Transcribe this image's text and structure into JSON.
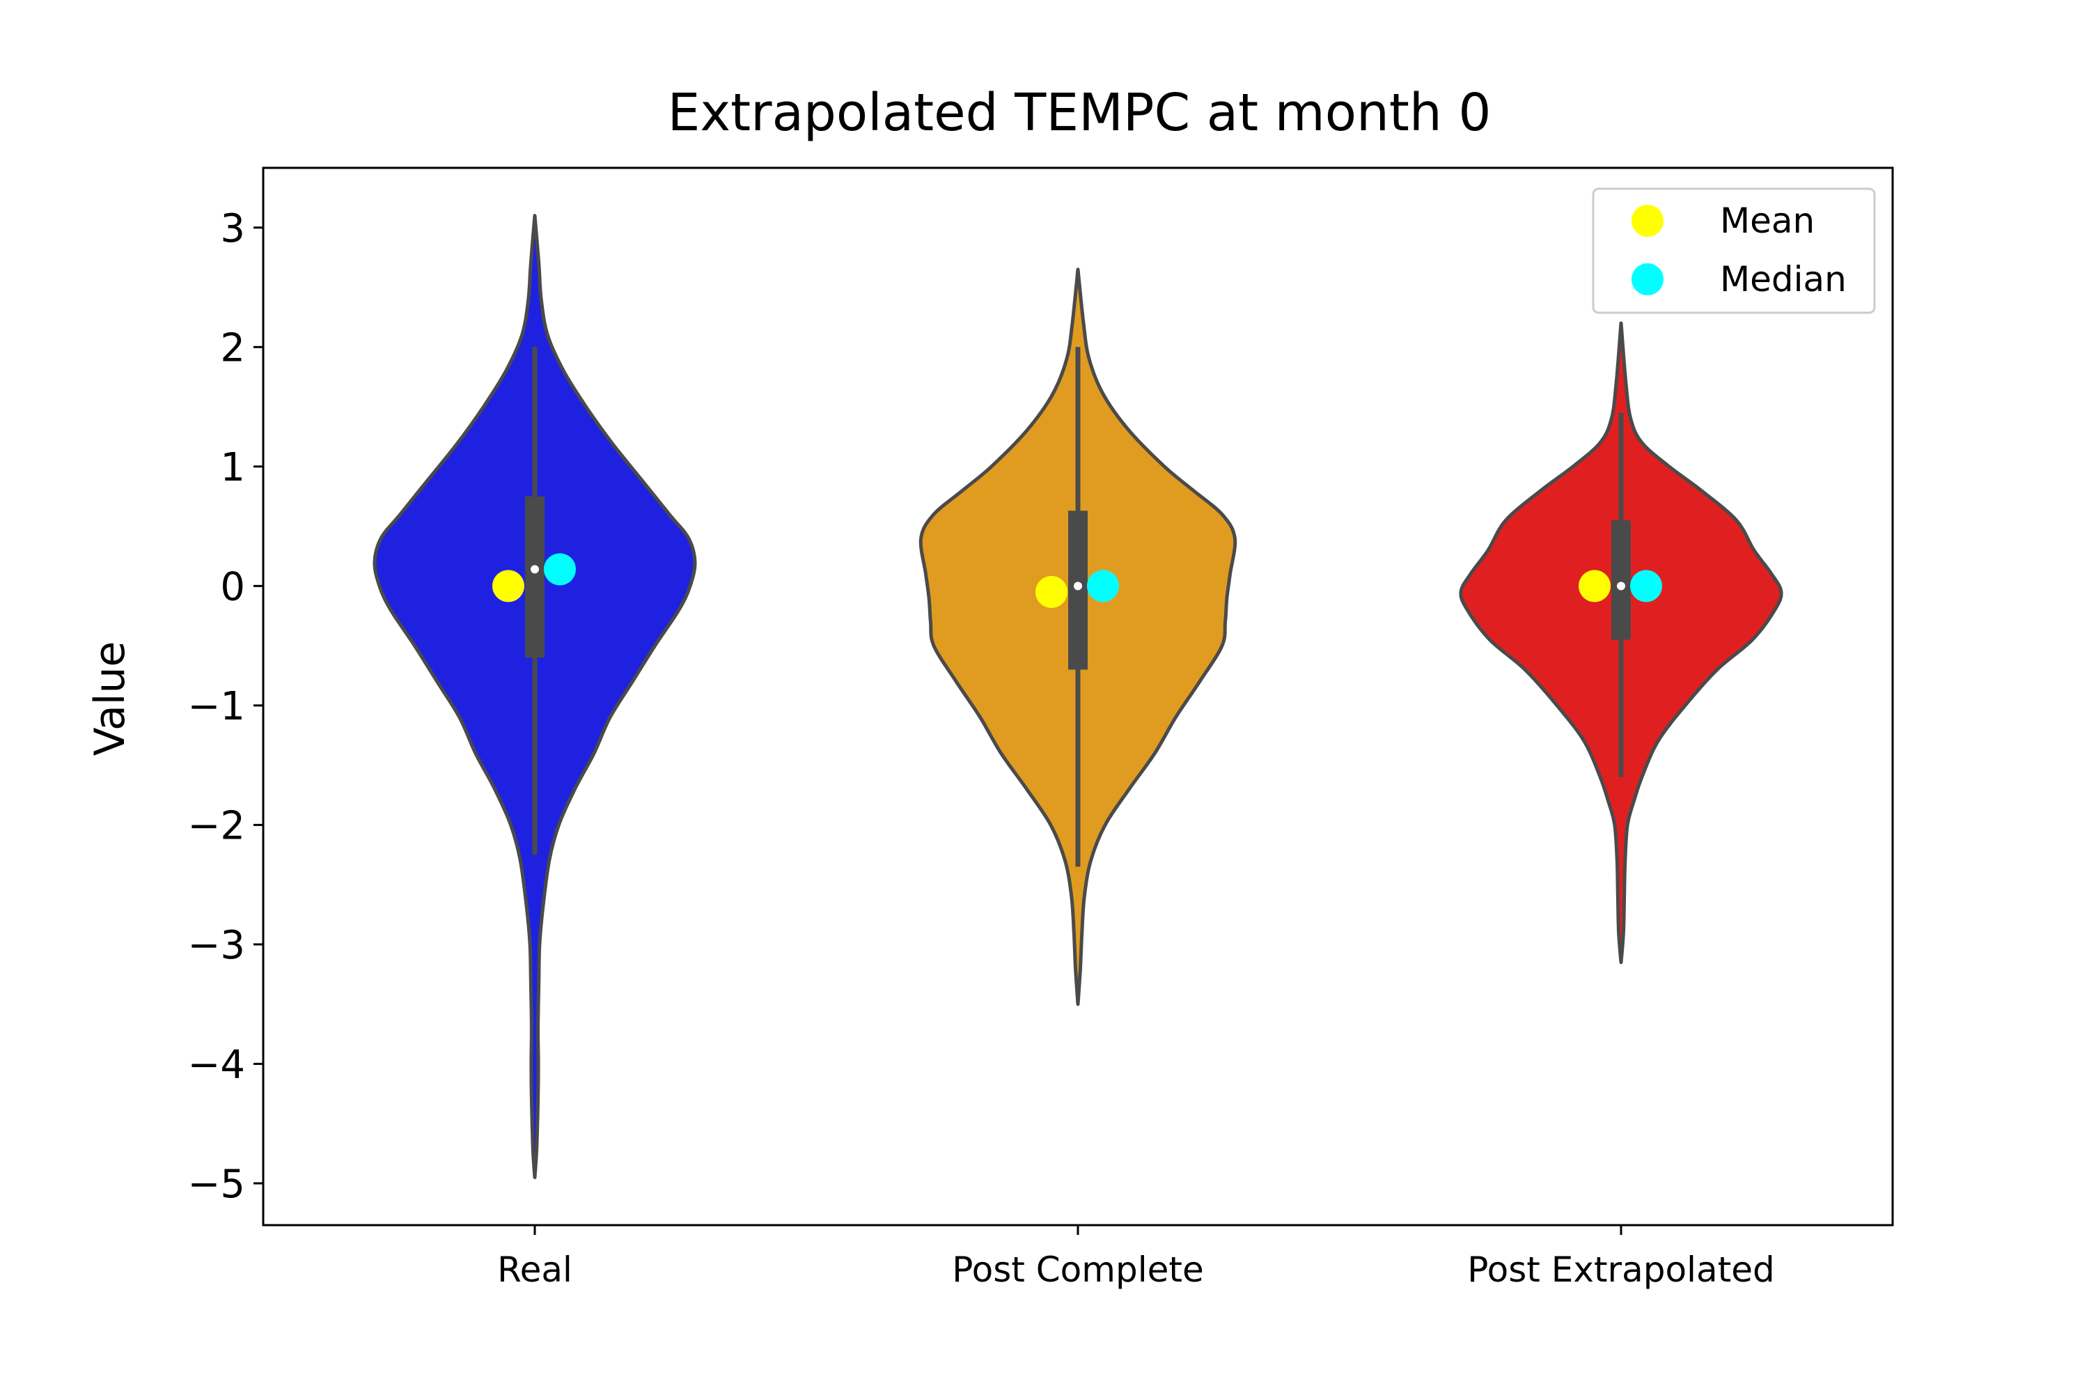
{
  "chart_data": {
    "type": "violin",
    "title": "Extrapolated TEMPC at month 0",
    "xlabel": "",
    "ylabel": "Value",
    "ylim": [
      -5.35,
      3.5
    ],
    "yticks": [
      3,
      2,
      1,
      0,
      -1,
      -2,
      -3,
      -4,
      -5
    ],
    "ytick_labels": [
      "3",
      "2",
      "1",
      "0",
      "−1",
      "−2",
      "−3",
      "−4",
      "−5"
    ],
    "categories": [
      "Real",
      "Post Complete",
      "Post Extrapolated"
    ],
    "grid": false,
    "legend": {
      "placement": "top-right",
      "entries": [
        {
          "label": "Mean",
          "color": "#ffff00"
        },
        {
          "label": "Median",
          "color": "#00ffff"
        }
      ]
    },
    "outline_color": "#4a4a4a",
    "series": [
      {
        "category": "Real",
        "color": "#1e22e0",
        "mean": 0.0,
        "median": 0.14,
        "q1": -0.6,
        "q3": 0.75,
        "whisker_low": -2.25,
        "whisker_high": 2.0,
        "min": -4.95,
        "max": 3.1,
        "density": [
          {
            "y": -4.95,
            "w": 0.0
          },
          {
            "y": -4.7,
            "w": 0.012
          },
          {
            "y": -4.3,
            "w": 0.02
          },
          {
            "y": -4.0,
            "w": 0.022
          },
          {
            "y": -3.7,
            "w": 0.02
          },
          {
            "y": -3.3,
            "w": 0.025
          },
          {
            "y": -3.0,
            "w": 0.03
          },
          {
            "y": -2.7,
            "w": 0.05
          },
          {
            "y": -2.3,
            "w": 0.09
          },
          {
            "y": -2.0,
            "w": 0.15
          },
          {
            "y": -1.7,
            "w": 0.25
          },
          {
            "y": -1.4,
            "w": 0.37
          },
          {
            "y": -1.1,
            "w": 0.47
          },
          {
            "y": -0.8,
            "w": 0.61
          },
          {
            "y": -0.5,
            "w": 0.75
          },
          {
            "y": -0.2,
            "w": 0.9
          },
          {
            "y": 0.0,
            "w": 0.97
          },
          {
            "y": 0.2,
            "w": 1.0
          },
          {
            "y": 0.4,
            "w": 0.96
          },
          {
            "y": 0.6,
            "w": 0.84
          },
          {
            "y": 0.9,
            "w": 0.66
          },
          {
            "y": 1.2,
            "w": 0.48
          },
          {
            "y": 1.5,
            "w": 0.32
          },
          {
            "y": 1.8,
            "w": 0.18
          },
          {
            "y": 2.1,
            "w": 0.08
          },
          {
            "y": 2.4,
            "w": 0.04
          },
          {
            "y": 2.7,
            "w": 0.025
          },
          {
            "y": 3.1,
            "w": 0.0
          }
        ]
      },
      {
        "category": "Post Complete",
        "color": "#e09c20",
        "mean": -0.05,
        "median": 0.0,
        "q1": -0.7,
        "q3": 0.63,
        "whisker_low": -2.35,
        "whisker_high": 2.0,
        "min": -3.5,
        "max": 2.65,
        "density": [
          {
            "y": -3.5,
            "w": 0.0
          },
          {
            "y": -3.2,
            "w": 0.015
          },
          {
            "y": -2.9,
            "w": 0.025
          },
          {
            "y": -2.6,
            "w": 0.04
          },
          {
            "y": -2.3,
            "w": 0.08
          },
          {
            "y": -2.0,
            "w": 0.17
          },
          {
            "y": -1.7,
            "w": 0.32
          },
          {
            "y": -1.4,
            "w": 0.48
          },
          {
            "y": -1.1,
            "w": 0.61
          },
          {
            "y": -0.8,
            "w": 0.76
          },
          {
            "y": -0.5,
            "w": 0.9
          },
          {
            "y": -0.3,
            "w": 0.92
          },
          {
            "y": -0.1,
            "w": 0.93
          },
          {
            "y": 0.1,
            "w": 0.95
          },
          {
            "y": 0.4,
            "w": 0.98
          },
          {
            "y": 0.6,
            "w": 0.9
          },
          {
            "y": 0.8,
            "w": 0.72
          },
          {
            "y": 1.0,
            "w": 0.54
          },
          {
            "y": 1.3,
            "w": 0.32
          },
          {
            "y": 1.6,
            "w": 0.16
          },
          {
            "y": 1.9,
            "w": 0.07
          },
          {
            "y": 2.2,
            "w": 0.035
          },
          {
            "y": 2.65,
            "w": 0.0
          }
        ]
      },
      {
        "category": "Post Extrapolated",
        "color": "#e02020",
        "mean": 0.0,
        "median": 0.0,
        "q1": -0.45,
        "q3": 0.55,
        "whisker_low": -1.6,
        "whisker_high": 1.45,
        "min": -3.15,
        "max": 2.2,
        "density": [
          {
            "y": -3.15,
            "w": 0.0
          },
          {
            "y": -2.9,
            "w": 0.015
          },
          {
            "y": -2.6,
            "w": 0.02
          },
          {
            "y": -2.3,
            "w": 0.025
          },
          {
            "y": -2.0,
            "w": 0.04
          },
          {
            "y": -1.8,
            "w": 0.08
          },
          {
            "y": -1.6,
            "w": 0.13
          },
          {
            "y": -1.3,
            "w": 0.23
          },
          {
            "y": -1.0,
            "w": 0.4
          },
          {
            "y": -0.7,
            "w": 0.6
          },
          {
            "y": -0.45,
            "w": 0.82
          },
          {
            "y": -0.2,
            "w": 0.96
          },
          {
            "y": -0.05,
            "w": 1.0
          },
          {
            "y": 0.1,
            "w": 0.94
          },
          {
            "y": 0.3,
            "w": 0.83
          },
          {
            "y": 0.55,
            "w": 0.72
          },
          {
            "y": 0.8,
            "w": 0.5
          },
          {
            "y": 1.0,
            "w": 0.3
          },
          {
            "y": 1.2,
            "w": 0.13
          },
          {
            "y": 1.4,
            "w": 0.06
          },
          {
            "y": 1.7,
            "w": 0.03
          },
          {
            "y": 2.2,
            "w": 0.0
          }
        ]
      }
    ]
  }
}
